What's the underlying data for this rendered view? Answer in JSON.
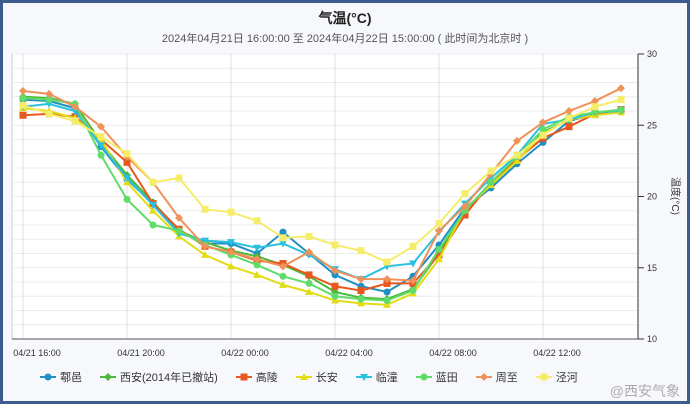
{
  "chart_data": {
    "type": "line",
    "title": "气温(°C)",
    "subtitle": "2024年04月21日 16:00:00 至 2024年04月22日 15:00:00 ( 此时间为北京时 )",
    "ylabel": "温度(°C)",
    "ylim": [
      10,
      30
    ],
    "yticks": [
      "10",
      "15",
      "20",
      "25",
      "30"
    ],
    "xtick_labels": [
      "04/21 16:00",
      "04/21 20:00",
      "04/22 00:00",
      "04/22 04:00",
      "04/22 08:00",
      "04/22 12:00"
    ],
    "x_hours": 24,
    "legend_position": "bottom",
    "grid": true,
    "series": [
      {
        "name": "鄠邑",
        "color": "#1f8fc4",
        "marker": "circle",
        "values": [
          26.8,
          26.7,
          26.2,
          23.5,
          21.2,
          19.5,
          17.6,
          16.7,
          16.7,
          16.0,
          17.5,
          16.0,
          14.5,
          13.7,
          13.3,
          14.4,
          16.6,
          19.2,
          20.6,
          22.3,
          23.8,
          25.3,
          25.8,
          26.1
        ]
      },
      {
        "name": "西安(2014年已撤站)",
        "color": "#4db83a",
        "marker": "diamond",
        "values": [
          27.0,
          26.9,
          26.5,
          23.8,
          21.5,
          19.6,
          17.6,
          16.8,
          16.2,
          15.8,
          15.2,
          14.4,
          13.3,
          12.9,
          12.8,
          13.5,
          16.0,
          19.0,
          20.9,
          22.5,
          24.5,
          25.4,
          25.8,
          26.0
        ]
      },
      {
        "name": "高陵",
        "color": "#e8571e",
        "marker": "square",
        "values": [
          25.7,
          25.8,
          25.6,
          24.0,
          22.4,
          19.5,
          17.7,
          16.5,
          16.1,
          15.5,
          15.3,
          14.5,
          13.7,
          13.4,
          13.9,
          13.9,
          15.9,
          18.7,
          21.0,
          22.6,
          24.1,
          24.9,
          25.8,
          26.1
        ]
      },
      {
        "name": "长安",
        "color": "#e2dc16",
        "marker": "triangle",
        "values": [
          26.2,
          26.0,
          25.5,
          24.0,
          21.0,
          19.0,
          17.2,
          15.9,
          15.1,
          14.5,
          13.8,
          13.3,
          12.7,
          12.5,
          12.4,
          13.2,
          15.6,
          19.1,
          20.8,
          22.5,
          24.4,
          25.4,
          25.7,
          25.9
        ]
      },
      {
        "name": "临潼",
        "color": "#2bc0e0",
        "marker": "triangle-down",
        "values": [
          26.3,
          26.5,
          26.0,
          23.6,
          21.3,
          19.4,
          17.4,
          16.9,
          16.8,
          16.4,
          16.7,
          15.9,
          14.9,
          14.2,
          15.1,
          15.3,
          17.5,
          19.5,
          21.3,
          22.9,
          25.1,
          25.4,
          25.9,
          26.0
        ]
      },
      {
        "name": "蓝田",
        "color": "#5fdc6a",
        "marker": "circle",
        "values": [
          26.9,
          26.8,
          26.5,
          22.9,
          19.8,
          18.0,
          17.6,
          16.6,
          15.9,
          15.2,
          14.4,
          13.9,
          13.0,
          12.8,
          12.7,
          13.4,
          16.3,
          19.0,
          21.0,
          22.8,
          24.7,
          25.6,
          25.9,
          26.1
        ]
      },
      {
        "name": "周至",
        "color": "#f0915a",
        "marker": "diamond",
        "values": [
          27.4,
          27.2,
          26.3,
          24.9,
          22.8,
          21.0,
          18.5,
          16.5,
          16.1,
          15.6,
          15.1,
          16.1,
          14.8,
          14.2,
          14.2,
          14.1,
          17.6,
          19.3,
          21.6,
          23.9,
          25.2,
          26.0,
          26.7,
          27.6
        ]
      },
      {
        "name": "泾河",
        "color": "#f5ec6a",
        "marker": "square",
        "values": [
          26.4,
          25.8,
          25.3,
          24.2,
          23.0,
          21.0,
          21.3,
          19.1,
          18.9,
          18.3,
          17.1,
          17.2,
          16.6,
          16.2,
          15.4,
          16.5,
          18.1,
          20.2,
          21.8,
          22.9,
          24.3,
          25.5,
          26.3,
          26.8
        ]
      }
    ]
  },
  "watermark": "@西安气象"
}
